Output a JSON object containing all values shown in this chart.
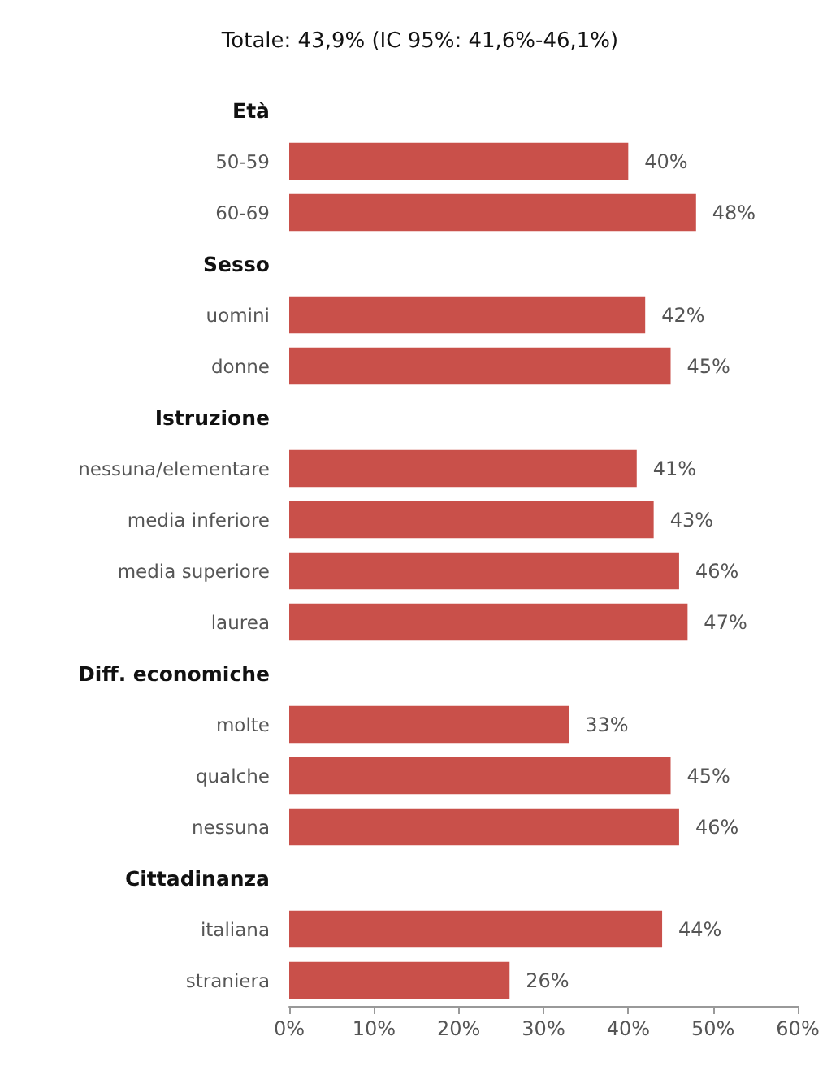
{
  "chart_data": {
    "type": "bar",
    "orientation": "horizontal",
    "title": "Totale: 43,9% (IC 95%: 41,6%-46,1%)",
    "categories": [
      "Età",
      "50-59",
      "60-69",
      "Sesso",
      "uomini",
      "donne",
      "Istruzione",
      "nessuna/elementare",
      "media inferiore",
      "media superiore",
      "laurea",
      "Diff. economiche",
      "molte",
      "qualche",
      "nessuna",
      "Cittadinanza",
      "italiana",
      "straniera"
    ],
    "values": [
      null,
      40,
      48,
      null,
      42,
      45,
      null,
      41,
      43,
      46,
      47,
      null,
      33,
      45,
      46,
      null,
      44,
      26
    ],
    "value_labels": [
      null,
      "40%",
      "48%",
      null,
      "42%",
      "45%",
      null,
      "41%",
      "43%",
      "46%",
      "47%",
      null,
      "33%",
      "45%",
      "46%",
      null,
      "44%",
      "26%"
    ],
    "color": "#c9504a",
    "xlim": [
      0,
      60
    ],
    "xticks": [
      {
        "value": 0,
        "label": "0%"
      },
      {
        "value": 10,
        "label": "10%"
      },
      {
        "value": 20,
        "label": "20%"
      },
      {
        "value": 30,
        "label": "30%"
      },
      {
        "value": 40,
        "label": "40%"
      },
      {
        "value": 50,
        "label": "50%"
      },
      {
        "value": 60,
        "label": "60%"
      }
    ],
    "grid": false
  }
}
